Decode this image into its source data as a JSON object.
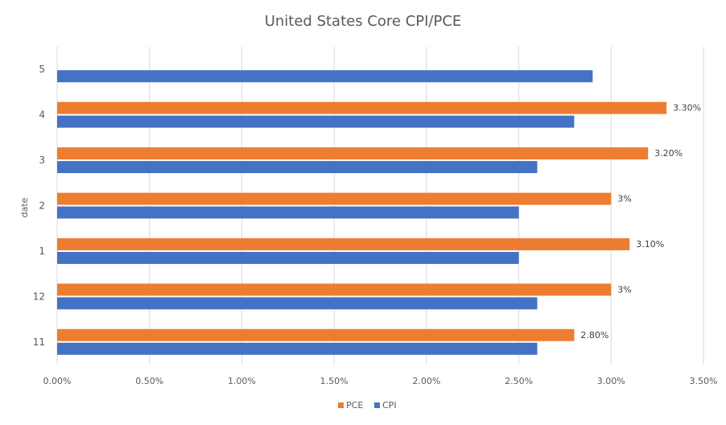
{
  "chart_data": {
    "type": "bar",
    "orientation": "horizontal",
    "title": "United States Core CPI/PCE",
    "xlabel": "",
    "ylabel": "date",
    "categories": [
      "5",
      "4",
      "3",
      "2",
      "1",
      "12",
      "11"
    ],
    "series": [
      {
        "name": "PCE",
        "color": "#ed7d31",
        "values": [
          null,
          3.3,
          3.2,
          3.0,
          3.1,
          3.0,
          2.8
        ],
        "data_labels": [
          "",
          "3.30%",
          "3.20%",
          "3%",
          "3.10%",
          "3%",
          "2.80%"
        ]
      },
      {
        "name": "CPI",
        "color": "#4472c4",
        "values": [
          2.9,
          2.8,
          2.6,
          2.5,
          2.5,
          2.6,
          2.6
        ]
      }
    ],
    "xlim": [
      0,
      3.5
    ],
    "x_ticks": [
      "0.00%",
      "0.50%",
      "1.00%",
      "1.50%",
      "2.00%",
      "2.50%",
      "3.00%",
      "3.50%"
    ],
    "x_tick_values": [
      0,
      0.5,
      1.0,
      1.5,
      2.0,
      2.5,
      3.0,
      3.5
    ],
    "grid": true,
    "legend_position": "bottom"
  }
}
